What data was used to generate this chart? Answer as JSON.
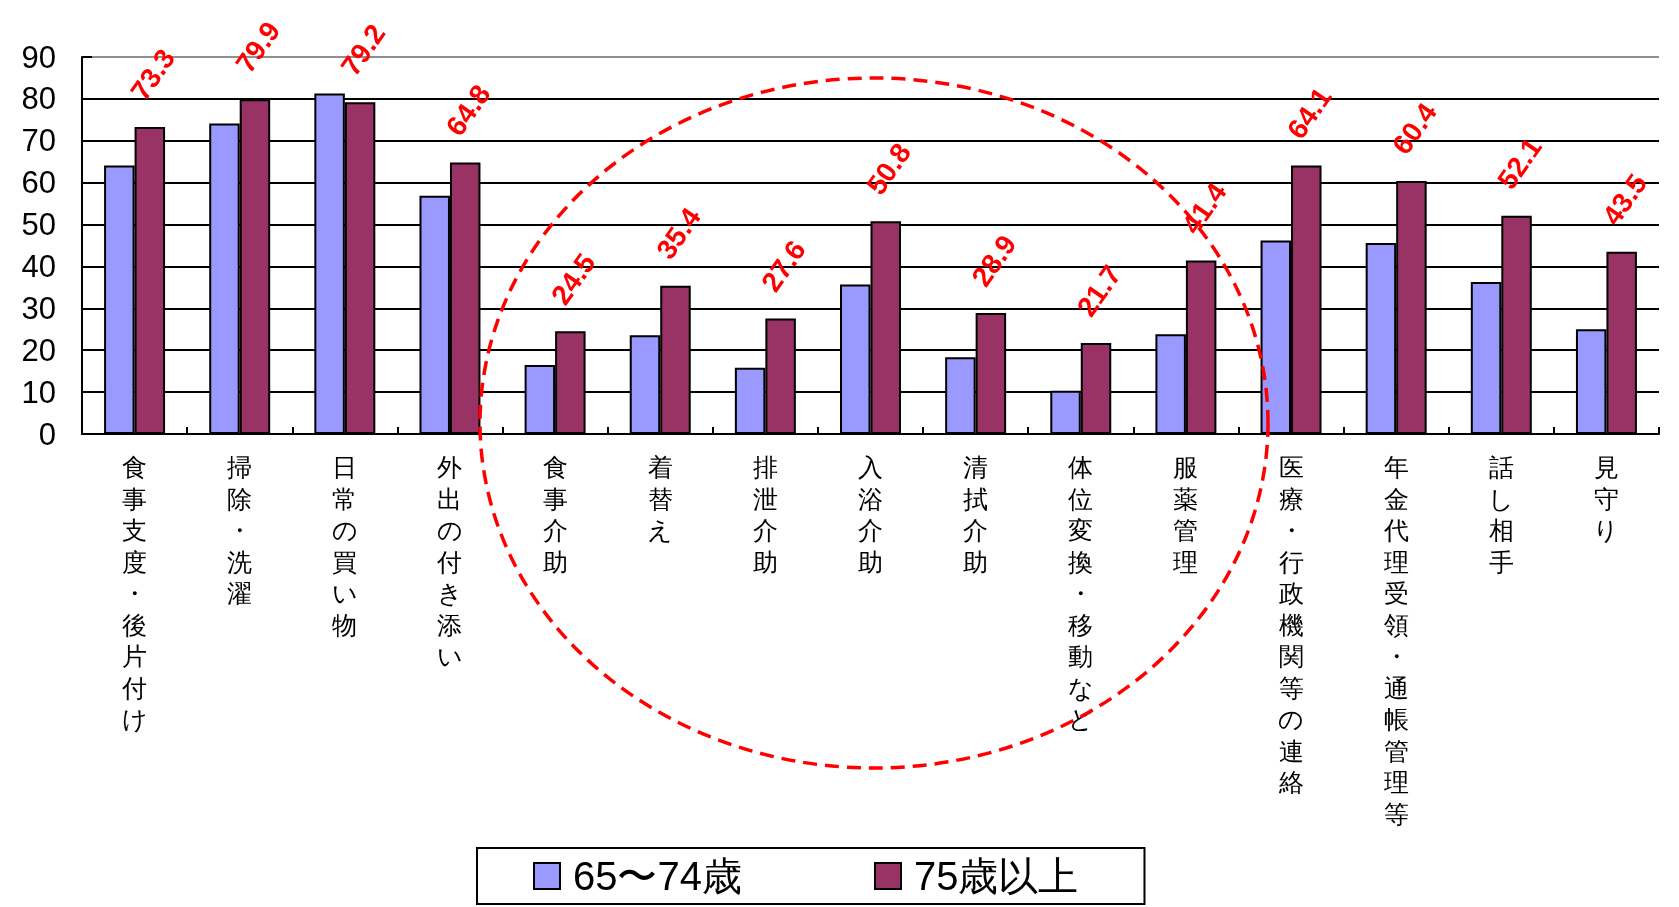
{
  "chart_data": {
    "type": "bar",
    "categories": [
      "食事支度・後片付け",
      "掃除・洗濯",
      "日常の買い物",
      "外出の付き添い",
      "食事介助",
      "着替え",
      "排泄介助",
      "入浴介助",
      "清拭介助",
      "体位変換・移動など",
      "服薬管理",
      "医療・行政機関等の連絡",
      "年金代理受領・通帳管理等",
      "話し相手",
      "見守り"
    ],
    "series": [
      {
        "name": "65〜74歳",
        "color": "#9999ff",
        "values": [
          64.1,
          74.1,
          81.3,
          56.9,
          16.5,
          23.6,
          15.8,
          35.7,
          18.3,
          10.3,
          23.8,
          46.2,
          45.6,
          36.3,
          25
        ]
      },
      {
        "name": "75歳以上",
        "color": "#993366",
        "values": [
          73.3,
          79.9,
          79.2,
          64.8,
          24.5,
          35.4,
          27.6,
          50.8,
          28.9,
          21.7,
          41.4,
          64.1,
          60.4,
          52.1,
          43.5
        ],
        "value_labels": [
          "73.3",
          "79.9",
          "79.2",
          "64.8",
          "24.5",
          "35.4",
          "27.6",
          "50.8",
          "28.9",
          "21.7",
          "41.4",
          "64.1",
          "60.4",
          "52.1",
          "43.5"
        ]
      }
    ],
    "ylim": [
      0,
      90
    ],
    "yticks": [
      0,
      10,
      20,
      30,
      40,
      50,
      60,
      70,
      80,
      90
    ],
    "grid": "y",
    "legend": "bottom"
  }
}
